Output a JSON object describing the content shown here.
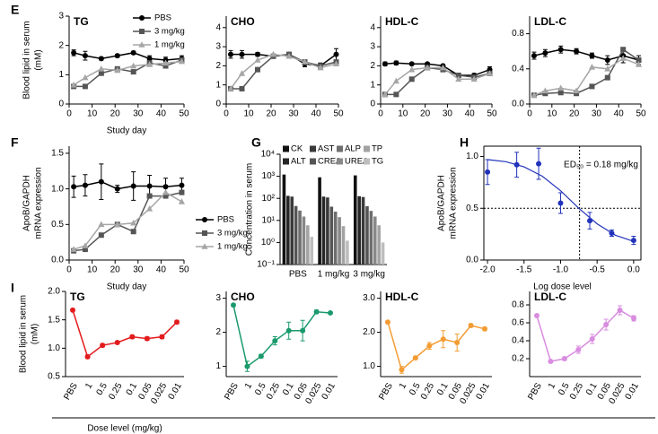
{
  "chart_data": [
    {
      "type": "line",
      "panel": "E",
      "title": "TG",
      "title_color": "#e31a1c",
      "ylabel": [
        "Blood lipid in serum",
        "(mM)"
      ],
      "xlabel": "Study day",
      "x": [
        2,
        7,
        14,
        21,
        28,
        35,
        42,
        49
      ],
      "xlim": [
        0,
        50
      ],
      "xticks": [
        0,
        10,
        20,
        30,
        40,
        50
      ],
      "ylim": [
        0,
        3
      ],
      "yticks": [
        0,
        1,
        2,
        3
      ],
      "legend": "upper right",
      "series": [
        {
          "name": "PBS",
          "color": "#000000",
          "marker": "circle",
          "values": [
            1.75,
            1.65,
            1.55,
            1.65,
            1.75,
            1.55,
            1.5,
            1.55
          ],
          "errors": [
            0.1,
            0.15,
            0.05,
            0.05,
            0.05,
            0.1,
            0.1,
            0.1
          ]
        },
        {
          "name": "3 mg/kg",
          "color": "#555555",
          "marker": "square",
          "values": [
            0.6,
            0.6,
            1.05,
            1.2,
            1.1,
            1.4,
            1.3,
            1.5
          ]
        },
        {
          "name": "1 mg/kg",
          "color": "#a6a6a6",
          "marker": "triangle",
          "values": [
            0.65,
            0.9,
            1.2,
            1.15,
            1.3,
            1.35,
            1.4,
            1.45
          ]
        }
      ]
    },
    {
      "type": "line",
      "title": "CHO",
      "title_color": "#1a9a6c",
      "x": [
        2,
        7,
        14,
        21,
        28,
        35,
        42,
        49
      ],
      "xlim": [
        0,
        50
      ],
      "xticks": [
        0,
        10,
        20,
        30,
        40,
        50
      ],
      "ylim": [
        0,
        4.6
      ],
      "yticks": [
        0,
        1,
        2,
        3,
        4
      ],
      "series": [
        {
          "color": "#000000",
          "marker": "circle",
          "values": [
            2.6,
            2.6,
            2.6,
            2.5,
            2.6,
            2.1,
            2.0,
            2.6
          ],
          "errors": [
            0.2,
            0.2,
            0.1,
            0.1,
            0.1,
            0.15,
            0.15,
            0.3
          ]
        },
        {
          "color": "#555555",
          "marker": "square",
          "values": [
            0.8,
            0.8,
            1.8,
            2.5,
            2.6,
            2.2,
            2.0,
            2.2
          ]
        },
        {
          "color": "#a6a6a6",
          "marker": "triangle",
          "values": [
            0.8,
            1.6,
            2.3,
            2.6,
            2.5,
            2.2,
            1.9,
            2.1
          ]
        }
      ]
    },
    {
      "type": "line",
      "title": "HDL-C",
      "title_color": "#f39c34",
      "x": [
        2,
        7,
        14,
        21,
        28,
        35,
        42,
        49
      ],
      "xlim": [
        0,
        50
      ],
      "xticks": [
        0,
        10,
        20,
        30,
        40,
        50
      ],
      "ylim": [
        0,
        4.6
      ],
      "yticks": [
        0,
        1,
        2,
        3,
        4
      ],
      "series": [
        {
          "color": "#000000",
          "marker": "circle",
          "values": [
            2.1,
            2.15,
            2.1,
            2.1,
            2.0,
            1.5,
            1.5,
            1.8
          ],
          "errors": [
            0.1,
            0.1,
            0.05,
            0.05,
            0.05,
            0.1,
            0.1,
            0.15
          ]
        },
        {
          "color": "#555555",
          "marker": "square",
          "values": [
            0.5,
            0.5,
            1.3,
            1.9,
            1.8,
            1.5,
            1.4,
            1.6
          ]
        },
        {
          "color": "#a6a6a6",
          "marker": "triangle",
          "values": [
            0.5,
            1.2,
            1.8,
            1.9,
            1.9,
            1.3,
            1.3,
            1.6
          ]
        }
      ]
    },
    {
      "type": "line",
      "title": "LDL-C",
      "title_color": "#d98ce0",
      "x": [
        2,
        7,
        14,
        21,
        28,
        35,
        42,
        49
      ],
      "xlim": [
        0,
        50
      ],
      "xticks": [
        0,
        10,
        20,
        30,
        40,
        50
      ],
      "ylim": [
        0,
        1
      ],
      "yticks": [
        {
          "value": 0,
          "label": "0.0"
        },
        0.4,
        0.8
      ],
      "series": [
        {
          "color": "#000000",
          "marker": "circle",
          "values": [
            0.55,
            0.58,
            0.62,
            0.6,
            0.55,
            0.5,
            0.55,
            0.5
          ],
          "errors": [
            0.04,
            0.04,
            0.04,
            0.03,
            0.03,
            0.05,
            0.08,
            0.05
          ]
        },
        {
          "color": "#555555",
          "marker": "square",
          "values": [
            0.1,
            0.12,
            0.13,
            0.12,
            0.2,
            0.3,
            0.62,
            0.5
          ]
        },
        {
          "color": "#a6a6a6",
          "marker": "triangle",
          "values": [
            0.1,
            0.15,
            0.18,
            0.15,
            0.42,
            0.4,
            0.52,
            0.45
          ]
        }
      ]
    },
    {
      "type": "line",
      "panel": "F",
      "ylabel": [
        "ApoB/GAPDH",
        "mRNA expression"
      ],
      "xlabel": "Study day",
      "x": [
        2,
        7,
        14,
        21,
        28,
        35,
        42,
        49
      ],
      "xlim": [
        0,
        50
      ],
      "xticks": [
        0,
        10,
        20,
        30,
        40,
        50
      ],
      "ylim": [
        0,
        1.6
      ],
      "yticks": [
        {
          "value": 0,
          "label": "0.0"
        },
        0.5,
        {
          "value": 1,
          "label": "1.0"
        },
        1.5
      ],
      "legend": "lower right",
      "series": [
        {
          "name": "PBS",
          "color": "#000000",
          "marker": "circle",
          "values": [
            1.03,
            1.05,
            1.1,
            1.0,
            1.04,
            1.04,
            1.03,
            1.05
          ],
          "errors": [
            0.15,
            0.15,
            0.25,
            0.05,
            0.2,
            0.15,
            0.12,
            0.1
          ]
        },
        {
          "name": "3 mg/kg",
          "color": "#555555",
          "marker": "square",
          "values": [
            0.13,
            0.15,
            0.35,
            0.5,
            0.4,
            0.9,
            0.9,
            0.95
          ]
        },
        {
          "name": "1 mg/kg",
          "color": "#a6a6a6",
          "marker": "triangle",
          "values": [
            0.15,
            0.2,
            0.5,
            0.5,
            0.52,
            0.72,
            0.95,
            0.82
          ]
        }
      ]
    },
    {
      "type": "bar",
      "panel": "G",
      "ylabel": [
        "Concentration in serum"
      ],
      "categories": [
        "PBS",
        "1 mg/kg",
        "3 mg/kg"
      ],
      "log_y": true,
      "ylim": [
        0.1,
        10000
      ],
      "yticks": [
        {
          "value": 0.1,
          "label": "10⁻¹"
        },
        {
          "value": 1,
          "label": "10⁰"
        },
        {
          "value": 10,
          "label": "10¹"
        },
        {
          "value": 100,
          "label": "10²"
        },
        {
          "value": 1000,
          "label": "10³"
        },
        {
          "value": 10000,
          "label": "10⁴"
        }
      ],
      "legend": "top",
      "series": [
        {
          "name": "CK",
          "color": "#111111",
          "values": [
            1200,
            900,
            1100
          ]
        },
        {
          "name": "ALT",
          "color": "#262626",
          "values": [
            130,
            120,
            125
          ]
        },
        {
          "name": "AST",
          "color": "#3a3a3a",
          "values": [
            120,
            110,
            115
          ]
        },
        {
          "name": "CREA",
          "color": "#555555",
          "values": [
            45,
            42,
            44
          ]
        },
        {
          "name": "ALP",
          "color": "#6e6e6e",
          "values": [
            28,
            25,
            27
          ]
        },
        {
          "name": "UREA",
          "color": "#888888",
          "values": [
            15,
            14,
            15
          ]
        },
        {
          "name": "TP",
          "color": "#a3a3a3",
          "values": [
            6,
            5.5,
            6
          ]
        },
        {
          "name": "TG",
          "color": "#bdbdbd",
          "values": [
            1.8,
            1.2,
            1
          ]
        }
      ]
    },
    {
      "type": "scatter",
      "panel": "H",
      "ylabel": [
        "ApoB/GAPDH",
        "mRNA expression"
      ],
      "xlabel": "Log dose level",
      "x": [
        -2,
        -1.6,
        -1.3,
        -1,
        -0.6,
        -0.3,
        0
      ],
      "values": [
        0.85,
        0.92,
        0.93,
        0.55,
        0.38,
        0.26,
        0.19
      ],
      "errors": [
        0.12,
        0.12,
        0.15,
        0.1,
        0.08,
        0.03,
        0.04
      ],
      "color": "#2233bb",
      "xlim": [
        -2.05,
        0.1
      ],
      "xticks": [
        {
          "value": -2,
          "label": "-2.0"
        },
        -1.5,
        {
          "value": -1,
          "label": "-1.0"
        },
        -0.5,
        {
          "value": 0,
          "label": "0.0"
        }
      ],
      "ylim": [
        0,
        1.1
      ],
      "yticks": [
        {
          "value": 0,
          "label": "0.0"
        },
        0.5,
        {
          "value": 1,
          "label": "1.0"
        }
      ],
      "fit": {
        "x": [
          -2,
          -1.75,
          -1.5,
          -1.25,
          -1,
          -0.75,
          -0.5,
          -0.25,
          0
        ],
        "values": [
          0.97,
          0.95,
          0.9,
          0.81,
          0.67,
          0.5,
          0.35,
          0.24,
          0.18
        ]
      },
      "ref_x": -0.74,
      "ref_y": 0.5,
      "annotation": "ED₅₀ = 0.18 mg/kg",
      "frame": true
    },
    {
      "type": "line",
      "panel": "I",
      "title": "TG",
      "title_color": "#e31a1c",
      "ylabel": [
        "Blood lipid in serum",
        "(mM)"
      ],
      "xlabel": "Dose level (mg/kg)",
      "rotate_labels": true,
      "categories": [
        "PBS",
        "1",
        "0.5",
        "0.25",
        "0.1",
        "0.05",
        "0.025",
        "0.01"
      ],
      "ylim": [
        0.5,
        2
      ],
      "yticks": [
        0.5,
        {
          "value": 1,
          "label": "1.0"
        },
        1.5,
        {
          "value": 2,
          "label": "2.0"
        }
      ],
      "series": [
        {
          "color": "#e31a1c",
          "marker": "circle",
          "values": [
            1.67,
            0.85,
            1.05,
            1.1,
            1.2,
            1.17,
            1.2,
            1.46
          ],
          "errors": [
            0,
            0.03,
            0.03,
            0.02,
            0.03,
            0.03,
            0.03,
            0.03
          ]
        }
      ]
    },
    {
      "type": "line",
      "title": "CHO",
      "title_color": "#1a9a6c",
      "rotate_labels": true,
      "categories": [
        "PBS",
        "1",
        "0.5",
        "0.25",
        "0.1",
        "0.05",
        "0.025",
        "0.01"
      ],
      "ylim": [
        0.7,
        3.2
      ],
      "yticks": [
        1,
        2,
        3
      ],
      "series": [
        {
          "color": "#1a9a6c",
          "marker": "circle",
          "values": [
            2.8,
            1.0,
            1.3,
            1.75,
            2.05,
            2.05,
            2.6,
            2.57
          ],
          "errors": [
            0,
            0.15,
            0.05,
            0.12,
            0.25,
            0.3,
            0.05,
            0.03
          ]
        }
      ]
    },
    {
      "type": "line",
      "title": "HDL-C",
      "title_color": "#f39c34",
      "rotate_labels": true,
      "categories": [
        "PBS",
        "1",
        "0.5",
        "0.25",
        "0.1",
        "0.05",
        "0.025",
        "0.01"
      ],
      "ylim": [
        0.7,
        3.2
      ],
      "yticks": [
        {
          "value": 1,
          "label": "1.0"
        },
        {
          "value": 2,
          "label": "2.0"
        },
        {
          "value": 3,
          "label": "3.0"
        }
      ],
      "series": [
        {
          "color": "#f39c34",
          "marker": "circle",
          "values": [
            2.3,
            0.9,
            1.25,
            1.6,
            1.8,
            1.7,
            2.2,
            2.1
          ],
          "errors": [
            0,
            0.1,
            0.05,
            0.1,
            0.25,
            0.25,
            0.05,
            0.05
          ]
        }
      ]
    },
    {
      "type": "line",
      "title": "LDL-C",
      "title_color": "#d98ce0",
      "rotate_labels": true,
      "categories": [
        "PBS",
        "1",
        "0.5",
        "0.25",
        "0.1",
        "0.05",
        "0.025",
        "0.01"
      ],
      "ylim": [
        0,
        0.95
      ],
      "yticks": [
        0.2,
        0.4,
        0.6,
        0.8
      ],
      "series": [
        {
          "color": "#d98ce0",
          "marker": "circle",
          "values": [
            0.68,
            0.17,
            0.2,
            0.3,
            0.42,
            0.58,
            0.74,
            0.65
          ],
          "errors": [
            0,
            0.01,
            0.02,
            0.04,
            0.05,
            0.06,
            0.05,
            0.03
          ]
        }
      ]
    }
  ]
}
